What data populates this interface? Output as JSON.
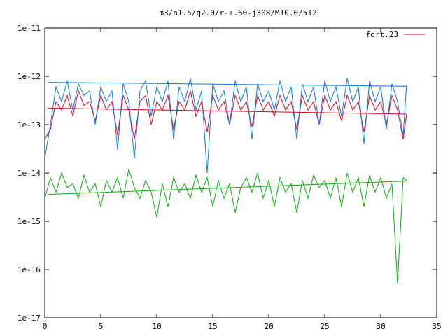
{
  "chart_data": {
    "type": "line",
    "title": "m3/n1.5/q2.0/r-+.60-j308/M10.0/512",
    "xlabel": "",
    "ylabel": "",
    "xlim": [
      0,
      35
    ],
    "ylim": [
      1e-17,
      1e-11
    ],
    "yscale": "log",
    "grid": false,
    "legend_position": "top-right",
    "x_ticks": [
      0,
      5,
      10,
      15,
      20,
      25,
      30,
      35
    ],
    "x_tick_labels": [
      "0",
      "5",
      "10",
      "15",
      "20",
      "25",
      "30",
      "35"
    ],
    "y_ticks": [
      1e-17,
      1e-16,
      1e-15,
      1e-14,
      1e-13,
      1e-12,
      1e-11
    ],
    "y_tick_labels": [
      "1e-17",
      "1e-16",
      "1e-15",
      "1e-14",
      "1e-13",
      "1e-12",
      "1e-11"
    ],
    "series": [
      {
        "name": "fort.23",
        "color": "#e0001a",
        "x": [
          0.0,
          0.5,
          1.0,
          1.5,
          2.0,
          2.5,
          3.0,
          3.5,
          4.0,
          4.5,
          5.0,
          5.5,
          6.0,
          6.5,
          7.0,
          7.5,
          8.0,
          8.5,
          9.0,
          9.5,
          10.0,
          10.5,
          11.0,
          11.5,
          12.0,
          12.5,
          13.0,
          13.5,
          14.0,
          14.5,
          15.0,
          15.5,
          16.0,
          16.5,
          17.0,
          17.5,
          18.0,
          18.5,
          19.0,
          19.5,
          20.0,
          20.5,
          21.0,
          21.5,
          22.0,
          22.5,
          23.0,
          23.5,
          24.0,
          24.5,
          25.0,
          25.5,
          26.0,
          26.5,
          27.0,
          27.5,
          28.0,
          28.5,
          29.0,
          29.5,
          30.0,
          30.5,
          31.0,
          31.5,
          32.0,
          32.3
        ],
        "values": [
          5e-14,
          8e-14,
          3e-13,
          2e-13,
          4e-13,
          1.5e-13,
          5e-13,
          2.5e-13,
          3e-13,
          1.2e-13,
          4e-13,
          2e-13,
          3e-13,
          6e-14,
          4e-13,
          2e-13,
          5e-14,
          3e-13,
          4e-13,
          1e-13,
          3e-13,
          2e-13,
          4e-13,
          8e-14,
          3e-13,
          2e-13,
          5e-13,
          1.5e-13,
          3e-13,
          7e-14,
          4e-13,
          2e-13,
          3e-13,
          1e-13,
          4e-13,
          2e-13,
          3e-13,
          9e-14,
          4e-13,
          2e-13,
          3e-13,
          1.5e-13,
          4e-13,
          2e-13,
          3e-13,
          8e-14,
          4e-13,
          2e-13,
          3e-13,
          1e-13,
          4e-13,
          2e-13,
          3e-13,
          1.2e-13,
          4e-13,
          2e-13,
          3e-13,
          7e-14,
          4e-13,
          2e-13,
          3e-13,
          1e-13,
          4e-13,
          2e-13,
          5e-14,
          1.6e-13
        ]
      },
      {
        "name": "",
        "color": "#e0001a",
        "x": [
          0.3,
          32.3
        ],
        "values": [
          2.2e-13,
          1.65e-13
        ]
      },
      {
        "name": "",
        "color": "#0a78e6",
        "x": [
          0.0,
          0.5,
          1.0,
          1.5,
          2.0,
          2.5,
          3.0,
          3.5,
          4.0,
          4.5,
          5.0,
          5.5,
          6.0,
          6.5,
          7.0,
          7.5,
          8.0,
          8.5,
          9.0,
          9.5,
          10.0,
          10.5,
          11.0,
          11.5,
          12.0,
          12.5,
          13.0,
          13.5,
          14.0,
          14.5,
          15.0,
          15.5,
          16.0,
          16.5,
          17.0,
          17.5,
          18.0,
          18.5,
          19.0,
          19.5,
          20.0,
          20.5,
          21.0,
          21.5,
          22.0,
          22.5,
          23.0,
          23.5,
          24.0,
          24.5,
          25.0,
          25.5,
          26.0,
          26.5,
          27.0,
          27.5,
          28.0,
          28.5,
          29.0,
          29.5,
          30.0,
          30.5,
          31.0,
          31.5,
          32.0,
          32.3
        ],
        "values": [
          2e-14,
          1e-13,
          6e-13,
          3e-13,
          8e-13,
          2e-13,
          7e-13,
          4e-13,
          5e-13,
          1e-13,
          6e-13,
          3e-13,
          5e-13,
          3e-14,
          7e-13,
          3e-13,
          2e-14,
          5e-13,
          8e-13,
          1.5e-13,
          6e-13,
          3e-13,
          8e-13,
          5e-14,
          6e-13,
          3e-13,
          9e-13,
          2e-13,
          5e-13,
          1e-14,
          7e-13,
          3e-13,
          5e-13,
          1e-13,
          8e-13,
          3e-13,
          6e-13,
          5e-14,
          7e-13,
          3e-13,
          5e-13,
          2e-13,
          8e-13,
          3e-13,
          6e-13,
          5e-14,
          7e-13,
          3e-13,
          6e-13,
          1e-13,
          8e-13,
          3e-13,
          6e-13,
          1.5e-13,
          9e-13,
          3e-13,
          6e-13,
          4e-14,
          8e-13,
          3e-13,
          6e-13,
          8e-14,
          7e-13,
          3e-13,
          6e-14,
          6.5e-13
        ]
      },
      {
        "name": "",
        "color": "#0a78e6",
        "x": [
          0.3,
          32.3
        ],
        "values": [
          7.5e-13,
          6.2e-13
        ]
      },
      {
        "name": "",
        "color": "#0aaa0a",
        "x": [
          0.0,
          0.5,
          1.0,
          1.5,
          2.0,
          2.5,
          3.0,
          3.5,
          4.0,
          4.5,
          5.0,
          5.5,
          6.0,
          6.5,
          7.0,
          7.5,
          8.0,
          8.5,
          9.0,
          9.5,
          10.0,
          10.5,
          11.0,
          11.5,
          12.0,
          12.5,
          13.0,
          13.5,
          14.0,
          14.5,
          15.0,
          15.5,
          16.0,
          16.5,
          17.0,
          17.5,
          18.0,
          18.5,
          19.0,
          19.5,
          20.0,
          20.5,
          21.0,
          21.5,
          22.0,
          22.5,
          23.0,
          23.5,
          24.0,
          24.5,
          25.0,
          25.5,
          26.0,
          26.5,
          27.0,
          27.5,
          28.0,
          28.5,
          29.0,
          29.5,
          30.0,
          30.5,
          31.0,
          31.5,
          32.0,
          32.3
        ],
        "values": [
          3e-15,
          8e-15,
          4e-15,
          1e-14,
          5e-15,
          6e-15,
          3e-15,
          9e-15,
          4e-15,
          6e-15,
          2e-15,
          7e-15,
          4e-15,
          8e-15,
          3e-15,
          1.2e-14,
          5e-15,
          3e-15,
          7e-15,
          4e-15,
          1.2e-15,
          6e-15,
          2e-15,
          8e-15,
          4e-15,
          6e-15,
          3e-15,
          9e-15,
          4e-15,
          8e-15,
          2e-15,
          7e-15,
          3e-15,
          6e-15,
          1.5e-15,
          5e-15,
          8e-15,
          4e-15,
          1e-14,
          3e-15,
          7e-15,
          2e-15,
          8e-15,
          4e-15,
          6e-15,
          1.5e-15,
          7e-15,
          3e-15,
          9e-15,
          5e-15,
          7e-15,
          3e-15,
          8e-15,
          2e-15,
          1e-14,
          4e-15,
          8e-15,
          2e-15,
          9e-15,
          4e-15,
          8e-15,
          3e-15,
          6e-15,
          5e-17,
          8e-15,
          7e-15
        ]
      },
      {
        "name": "",
        "color": "#0aaa0a",
        "x": [
          0.3,
          32.3
        ],
        "values": [
          3.6e-15,
          6.8e-15
        ]
      }
    ]
  }
}
